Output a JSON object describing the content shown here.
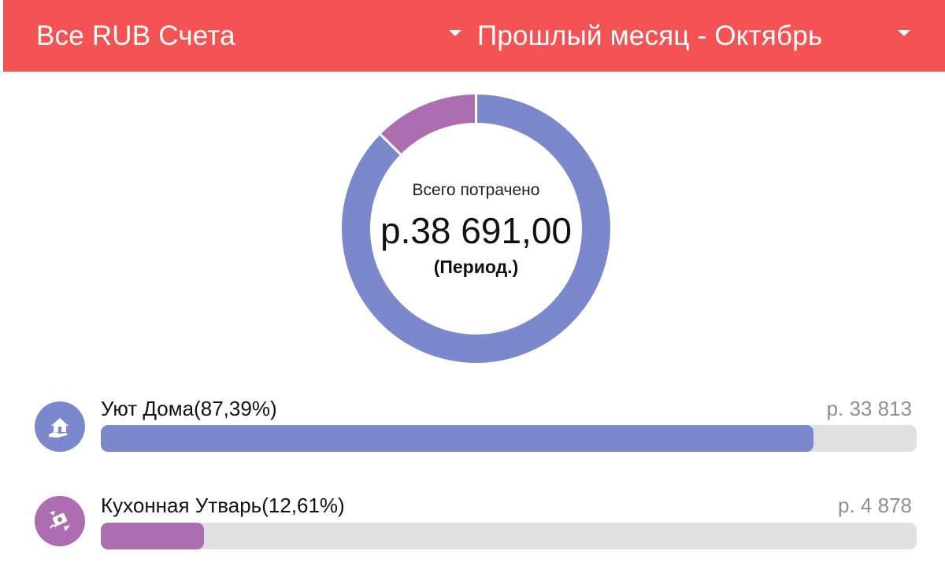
{
  "header": {
    "account_selector": "Все RUB Счета",
    "period_selector": "Прошлый месяц - Октябрь"
  },
  "summary": {
    "caption": "Всего потрачено",
    "amount": "р.38 691,00",
    "period_note": "(Период.)"
  },
  "categories": [
    {
      "name": "Уют Дома(87,39%)",
      "amount": "р. 33 813",
      "percent": 87.39,
      "color": "#7b88cc",
      "icon": "home-hand-icon"
    },
    {
      "name": "Кухонная Утварь(12,61%)",
      "amount": "р. 4 878",
      "percent": 12.61,
      "color": "#ad6db1",
      "icon": "money-flow-icon"
    }
  ],
  "colors": {
    "header": "#f55353",
    "track": "#e0e0e0"
  }
}
